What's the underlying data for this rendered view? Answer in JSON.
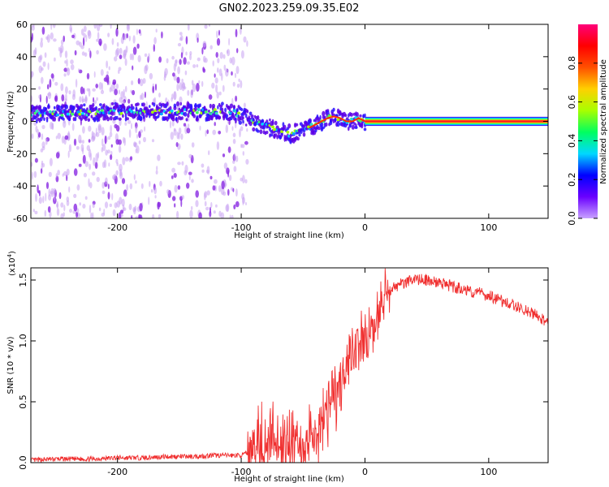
{
  "title": "GN02.2023.259.09.35.E02",
  "chart_data": [
    {
      "type": "heatmap",
      "panel": "spectrogram",
      "xlabel": "Height of straight line (km)",
      "ylabel": "Frequency (Hz)",
      "xlim": [
        -270,
        148
      ],
      "ylim": [
        -60,
        60
      ],
      "xticks": [
        -200,
        -100,
        0,
        100
      ],
      "yticks": [
        -60,
        -40,
        -20,
        0,
        20,
        40,
        60
      ],
      "xtick_labels": [
        "-200",
        "-100",
        "0",
        "100"
      ],
      "ytick_labels": [
        "-60",
        "-40",
        "-20",
        "0",
        "20",
        "40",
        "60"
      ],
      "dominant_frequency_track": {
        "x": [
          -270,
          -240,
          -200,
          -160,
          -130,
          -110,
          -100,
          -90,
          -80,
          -70,
          -60,
          -50,
          -45,
          -40,
          -35,
          -30,
          -25,
          -20,
          -15,
          -10,
          -5,
          0,
          20,
          60,
          100,
          148
        ],
        "y": [
          5,
          5,
          6,
          6,
          6,
          6,
          4,
          0,
          -3,
          -6,
          -8,
          -6,
          -4,
          -2,
          0,
          2,
          3,
          2,
          0,
          0,
          2,
          0,
          0,
          0,
          0,
          0
        ]
      },
      "colorbar": {
        "label": "Normalized spectral amplitude",
        "range": [
          0,
          1
        ],
        "ticks": [
          0.0,
          0.2,
          0.4,
          0.6,
          0.8
        ],
        "tick_labels": [
          "0.0",
          "0.2",
          "0.4",
          "0.6",
          "0.8"
        ],
        "colors": [
          "#c8a2ff",
          "#6a00ff",
          "#0000ff",
          "#00d8ff",
          "#00ff60",
          "#a8ff00",
          "#ffd000",
          "#ff5000",
          "#ff0000",
          "#ff007a"
        ]
      },
      "colors": {
        "scatter_base": "#8a2be2",
        "scatter_light": "#c9a3f3",
        "track_core": "#ff2a2a"
      }
    },
    {
      "type": "line",
      "panel": "snr",
      "xlabel": "Height of straight line (km)",
      "ylabel": "SNR (10 * v/v)",
      "y_multiplier": "(x10",
      "y_multiplier_exp": "4",
      "y_multiplier_close": ")",
      "xlim": [
        -270,
        148
      ],
      "ylim": [
        0,
        1.6
      ],
      "xticks": [
        -200,
        -100,
        0,
        100
      ],
      "yticks": [
        0.0,
        0.5,
        1.0,
        1.5
      ],
      "xtick_labels": [
        "-200",
        "-100",
        "0",
        "100"
      ],
      "ytick_labels": [
        "0.0",
        "0.5",
        "1.0",
        "1.5"
      ],
      "series": [
        {
          "color": "#f03030",
          "x": [
            -270,
            -250,
            -220,
            -200,
            -180,
            -160,
            -140,
            -120,
            -110,
            -100,
            -95,
            -90,
            -85,
            -80,
            -75,
            -70,
            -65,
            -60,
            -55,
            -50,
            -45,
            -40,
            -35,
            -30,
            -25,
            -22,
            -20,
            -15,
            -10,
            -5,
            0,
            5,
            10,
            15,
            20,
            25,
            30,
            40,
            50,
            60,
            70,
            80,
            90,
            100,
            110,
            120,
            130,
            140,
            148
          ],
          "y": [
            0.02,
            0.03,
            0.03,
            0.04,
            0.04,
            0.05,
            0.05,
            0.06,
            0.06,
            0.06,
            0.08,
            0.15,
            0.2,
            0.12,
            0.25,
            0.1,
            0.15,
            0.12,
            0.15,
            0.1,
            0.2,
            0.15,
            0.3,
            0.4,
            0.6,
            0.5,
            0.65,
            0.8,
            0.9,
            1.0,
            1.0,
            1.05,
            1.15,
            1.3,
            1.4,
            1.45,
            1.47,
            1.5,
            1.5,
            1.48,
            1.45,
            1.42,
            1.4,
            1.37,
            1.33,
            1.3,
            1.25,
            1.2,
            1.15
          ]
        }
      ]
    }
  ]
}
